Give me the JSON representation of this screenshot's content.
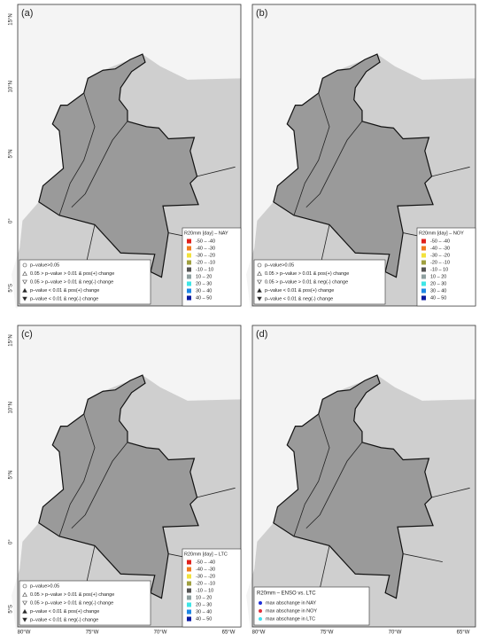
{
  "panels": [
    {
      "label": "(a)",
      "legend_title": "R20mm [day] – NAY",
      "legend": "classes"
    },
    {
      "label": "(b)",
      "legend_title": "R20mm [day] – NOY",
      "legend": "classes"
    },
    {
      "label": "(c)",
      "legend_title": "R20mm [day] – LTC",
      "legend": "classes"
    },
    {
      "label": "(d)",
      "legend_title": "R20mm – ENSO vs. LTC",
      "legend": "enso"
    }
  ],
  "class_legend": [
    {
      "label": "-50 – -40",
      "color": "#e0201c"
    },
    {
      "label": "-40 – -30",
      "color": "#f07a20"
    },
    {
      "label": "-30 – -20",
      "color": "#f2e23c"
    },
    {
      "label": "-20 – -10",
      "color": "#a0a040"
    },
    {
      "label": "-10 – 10",
      "color": "#555555"
    },
    {
      "label": "10 – 20",
      "color": "#8fa0a0"
    },
    {
      "label": "20 – 30",
      "color": "#3ee6e6"
    },
    {
      "label": "30 – 40",
      "color": "#1e88e5"
    },
    {
      "label": "40 – 50",
      "color": "#0a1aa0"
    }
  ],
  "significance_legend": [
    "p–value>0.05",
    "0.05 > p–value > 0.01 & pos(+) change",
    "0.05 > p–value > 0.01 & neg(-) change",
    "p–value < 0.01 & pos(+) change",
    "p–value < 0.01 & neg(-) change"
  ],
  "enso_legend": [
    {
      "label": "max abschange in NAY",
      "color": "#1f2fd8"
    },
    {
      "label": "max abschange in NOY",
      "color": "#e0303a"
    },
    {
      "label": "max abschange in LTC",
      "color": "#40e0f0"
    }
  ],
  "lat_ticks": [
    "15°N",
    "10°N",
    "5°N",
    "0°",
    "5°S"
  ],
  "lon_ticks": [
    "80°W",
    "75°W",
    "70°W",
    "65°W"
  ]
}
